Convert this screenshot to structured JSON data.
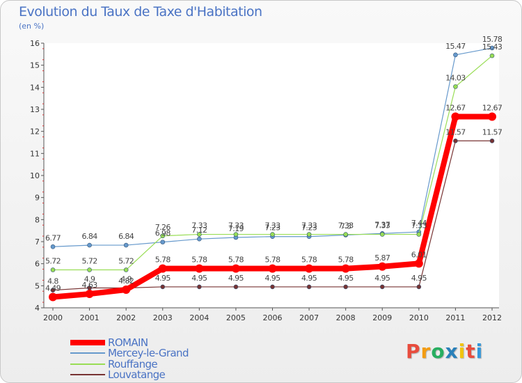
{
  "chart_data": {
    "type": "line",
    "title": "Evolution du Taux de Taxe d'Habitation",
    "subtitle": "(en %)",
    "xlabel": "",
    "ylabel": "",
    "ylim": [
      4,
      16
    ],
    "y_ticks": [
      4,
      5,
      6,
      7,
      8,
      9,
      10,
      11,
      12,
      13,
      14,
      15,
      16
    ],
    "categories": [
      "2000",
      "2001",
      "2002",
      "2003",
      "2004",
      "2005",
      "2006",
      "2007",
      "2008",
      "2009",
      "2010",
      "2011",
      "2012"
    ],
    "grid": false,
    "legend": "bottom-left",
    "series": [
      {
        "name": "ROMAIN",
        "color": "#ff0000",
        "values": [
          4.49,
          4.63,
          4.82,
          5.78,
          5.78,
          5.78,
          5.78,
          5.78,
          5.78,
          5.87,
          6.01,
          12.67,
          12.67
        ],
        "labels": [
          "4.49",
          "4.63",
          "4.82",
          "5.78",
          "5.78",
          "5.78",
          "5.78",
          "5.78",
          "5.78",
          "5.87",
          "6.01",
          "12.67",
          "12.67"
        ]
      },
      {
        "name": "Mercey-le-Grand",
        "color": "#6699cc",
        "values": [
          6.77,
          6.84,
          6.84,
          6.98,
          7.12,
          7.19,
          7.23,
          7.23,
          7.3,
          7.37,
          7.44,
          15.47,
          15.78
        ],
        "labels": [
          "6.77",
          "6.84",
          "6.84",
          "6.98",
          "7.12",
          "7.19",
          "7.23",
          "7.23",
          "7.3",
          "7.37",
          "7.44",
          "15.47",
          "15.78"
        ]
      },
      {
        "name": "Rouffange",
        "color": "#99dd55",
        "values": [
          5.72,
          5.72,
          5.72,
          7.26,
          7.33,
          7.33,
          7.33,
          7.33,
          7.33,
          7.33,
          7.33,
          14.03,
          15.43
        ],
        "labels": [
          "5.72",
          "5.72",
          "5.72",
          "7.26",
          "7.33",
          "7.33",
          "7.33",
          "7.33",
          "7.33",
          "7.33",
          "7.33",
          "14.03",
          "15.43"
        ]
      },
      {
        "name": "Louvatange",
        "color": "#773333",
        "values": [
          4.8,
          4.9,
          4.9,
          4.95,
          4.95,
          4.95,
          4.95,
          4.95,
          4.95,
          4.95,
          4.95,
          11.57,
          11.57
        ],
        "labels": [
          "4.8",
          "4.9",
          "4.9",
          "4.95",
          "4.95",
          "4.95",
          "4.95",
          "4.95",
          "4.95",
          "4.95",
          "4.95",
          "11.57",
          "11.57"
        ]
      }
    ]
  },
  "logo": {
    "text": "Proxiti",
    "letter_colors": [
      "#e84c3d",
      "#f39c12",
      "#27ae60",
      "#2980b9",
      "#f1c40f",
      "#e84c3d",
      "#3498db"
    ]
  }
}
